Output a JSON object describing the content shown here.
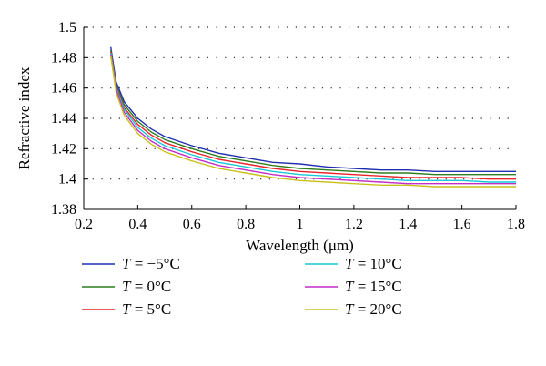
{
  "chart_data": {
    "type": "line",
    "xlabel": "Wavelength (μm)",
    "ylabel": "Refractive index",
    "xlim": [
      0.2,
      1.8
    ],
    "ylim": [
      1.38,
      1.5
    ],
    "xticks": [
      "0.2",
      "0.4",
      "0.6",
      "0.8",
      "1",
      "1.2",
      "1.4",
      "1.6",
      "1.8"
    ],
    "yticks": [
      "1.38",
      "1.4",
      "1.42",
      "1.44",
      "1.46",
      "1.48",
      "1.5"
    ],
    "grid": "horizontal dotted",
    "legend_position": "bottom",
    "x": [
      0.3,
      0.32,
      0.35,
      0.4,
      0.45,
      0.5,
      0.6,
      0.7,
      0.8,
      0.9,
      1.0,
      1.1,
      1.2,
      1.3,
      1.4,
      1.5,
      1.6,
      1.7,
      1.8
    ],
    "series": [
      {
        "name": "T = −5°C",
        "color": "#1f2fb0",
        "values": [
          1.487,
          1.464,
          1.451,
          1.44,
          1.433,
          1.428,
          1.422,
          1.417,
          1.414,
          1.411,
          1.41,
          1.408,
          1.407,
          1.406,
          1.406,
          1.405,
          1.405,
          1.405,
          1.405
        ]
      },
      {
        "name": "T = 0°C",
        "color": "#2e7d1e",
        "values": [
          1.485,
          1.462,
          1.449,
          1.438,
          1.431,
          1.426,
          1.42,
          1.415,
          1.412,
          1.409,
          1.407,
          1.406,
          1.405,
          1.404,
          1.404,
          1.403,
          1.403,
          1.403,
          1.403
        ]
      },
      {
        "name": "T = 5°C",
        "color": "#e8262b",
        "values": [
          1.484,
          1.461,
          1.447,
          1.436,
          1.429,
          1.424,
          1.418,
          1.413,
          1.41,
          1.407,
          1.405,
          1.404,
          1.403,
          1.402,
          1.401,
          1.401,
          1.401,
          1.4,
          1.4
        ]
      },
      {
        "name": "T = 10°C",
        "color": "#17c8d6",
        "values": [
          1.483,
          1.46,
          1.446,
          1.434,
          1.427,
          1.422,
          1.416,
          1.411,
          1.408,
          1.405,
          1.403,
          1.402,
          1.401,
          1.4,
          1.399,
          1.399,
          1.399,
          1.398,
          1.398
        ]
      },
      {
        "name": "T = 15°C",
        "color": "#c22ec8",
        "values": [
          1.482,
          1.459,
          1.444,
          1.432,
          1.425,
          1.42,
          1.414,
          1.409,
          1.406,
          1.403,
          1.401,
          1.4,
          1.399,
          1.398,
          1.397,
          1.397,
          1.397,
          1.397,
          1.397
        ]
      },
      {
        "name": "T = 20°C",
        "color": "#c9c21c",
        "values": [
          1.481,
          1.457,
          1.442,
          1.43,
          1.423,
          1.418,
          1.412,
          1.407,
          1.404,
          1.401,
          1.399,
          1.398,
          1.397,
          1.396,
          1.396,
          1.395,
          1.395,
          1.395,
          1.395
        ]
      }
    ]
  },
  "legend": {
    "items": [
      {
        "var": "T",
        "eq": " = −5°C"
      },
      {
        "var": "T",
        "eq": " = 0°C"
      },
      {
        "var": "T",
        "eq": " = 5°C"
      },
      {
        "var": "T",
        "eq": " = 10°C"
      },
      {
        "var": "T",
        "eq": " = 15°C"
      },
      {
        "var": "T",
        "eq": " = 20°C"
      }
    ]
  }
}
